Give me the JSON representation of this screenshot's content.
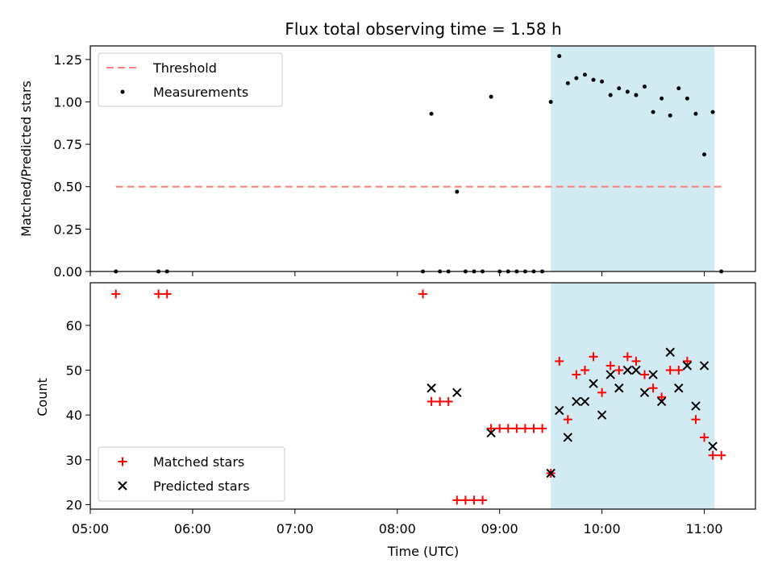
{
  "chart_data": [
    {
      "type": "scatter",
      "title": "Flux total observing time = 1.58 h",
      "ylabel": "Matched/Predicted stars",
      "xlim": [
        "05:00",
        "11:30"
      ],
      "ylim": [
        0,
        1.33
      ],
      "yticks": [
        "0.00",
        "0.25",
        "0.50",
        "0.75",
        "1.00",
        "1.25"
      ],
      "highlight": {
        "from": "09:30",
        "to": "11:06",
        "color": "#add8e6"
      },
      "threshold": {
        "name": "Threshold",
        "value": 0.5,
        "from": "05:15",
        "to": "11:10",
        "color": "#ff7f7f"
      },
      "legend": {
        "position": "top-left",
        "entries": [
          "Threshold",
          "Measurements"
        ]
      },
      "series": [
        {
          "name": "Measurements",
          "color": "#000000",
          "x": [
            "05:15",
            "05:40",
            "05:45",
            "08:15",
            "08:20",
            "08:25",
            "08:30",
            "08:35",
            "08:40",
            "08:45",
            "08:50",
            "08:55",
            "09:00",
            "09:05",
            "09:10",
            "09:15",
            "09:20",
            "09:25",
            "09:30",
            "09:35",
            "09:40",
            "09:45",
            "09:50",
            "09:55",
            "10:00",
            "10:05",
            "10:10",
            "10:15",
            "10:20",
            "10:25",
            "10:30",
            "10:35",
            "10:40",
            "10:45",
            "10:50",
            "10:55",
            "11:00",
            "11:05",
            "11:10"
          ],
          "y": [
            0,
            0,
            0,
            0,
            0.93,
            0,
            0,
            0.47,
            0,
            0,
            0,
            1.03,
            0,
            0,
            0,
            0,
            0,
            0,
            1.0,
            1.27,
            1.11,
            1.14,
            1.16,
            1.13,
            1.12,
            1.04,
            1.08,
            1.06,
            1.04,
            1.09,
            0.94,
            1.02,
            0.92,
            1.08,
            1.02,
            0.93,
            0.69,
            0.94,
            0
          ]
        }
      ]
    },
    {
      "type": "scatter",
      "xlabel": "Time (UTC)",
      "ylabel": "Count",
      "xlim": [
        "05:00",
        "11:30"
      ],
      "ylim": [
        19,
        69.5
      ],
      "xticks": [
        "05:00",
        "06:00",
        "07:00",
        "08:00",
        "09:00",
        "10:00",
        "11:00"
      ],
      "yticks": [
        "20",
        "30",
        "40",
        "50",
        "60"
      ],
      "highlight": {
        "from": "09:30",
        "to": "11:06",
        "color": "#add8e6"
      },
      "legend": {
        "position": "bottom-left",
        "entries": [
          "Matched stars",
          "Predicted stars"
        ]
      },
      "series": [
        {
          "name": "Matched stars",
          "marker": "plus",
          "color": "#ff0000",
          "x": [
            "05:15",
            "05:40",
            "05:45",
            "08:15",
            "08:20",
            "08:25",
            "08:30",
            "08:35",
            "08:40",
            "08:45",
            "08:50",
            "08:55",
            "09:00",
            "09:05",
            "09:10",
            "09:15",
            "09:20",
            "09:25",
            "09:30",
            "09:35",
            "09:40",
            "09:45",
            "09:50",
            "09:55",
            "10:00",
            "10:05",
            "10:10",
            "10:15",
            "10:20",
            "10:25",
            "10:30",
            "10:35",
            "10:40",
            "10:45",
            "10:50",
            "10:55",
            "11:00",
            "11:05",
            "11:10"
          ],
          "y": [
            67,
            67,
            67,
            67,
            43,
            43,
            43,
            21,
            21,
            21,
            21,
            37,
            37,
            37,
            37,
            37,
            37,
            37,
            27,
            52,
            39,
            49,
            50,
            53,
            45,
            51,
            50,
            53,
            52,
            49,
            46,
            44,
            50,
            50,
            52,
            39,
            35,
            31,
            31
          ]
        },
        {
          "name": "Predicted stars",
          "marker": "x",
          "color": "#000000",
          "x": [
            "08:20",
            "08:35",
            "08:55",
            "09:30",
            "09:35",
            "09:40",
            "09:45",
            "09:50",
            "09:55",
            "10:00",
            "10:05",
            "10:10",
            "10:15",
            "10:20",
            "10:25",
            "10:30",
            "10:35",
            "10:40",
            "10:45",
            "10:50",
            "10:55",
            "11:00",
            "11:05"
          ],
          "y": [
            46,
            45,
            36,
            27,
            41,
            35,
            43,
            43,
            47,
            40,
            49,
            46,
            50,
            50,
            45,
            49,
            43,
            54,
            46,
            51,
            42,
            51,
            33
          ]
        }
      ]
    }
  ]
}
